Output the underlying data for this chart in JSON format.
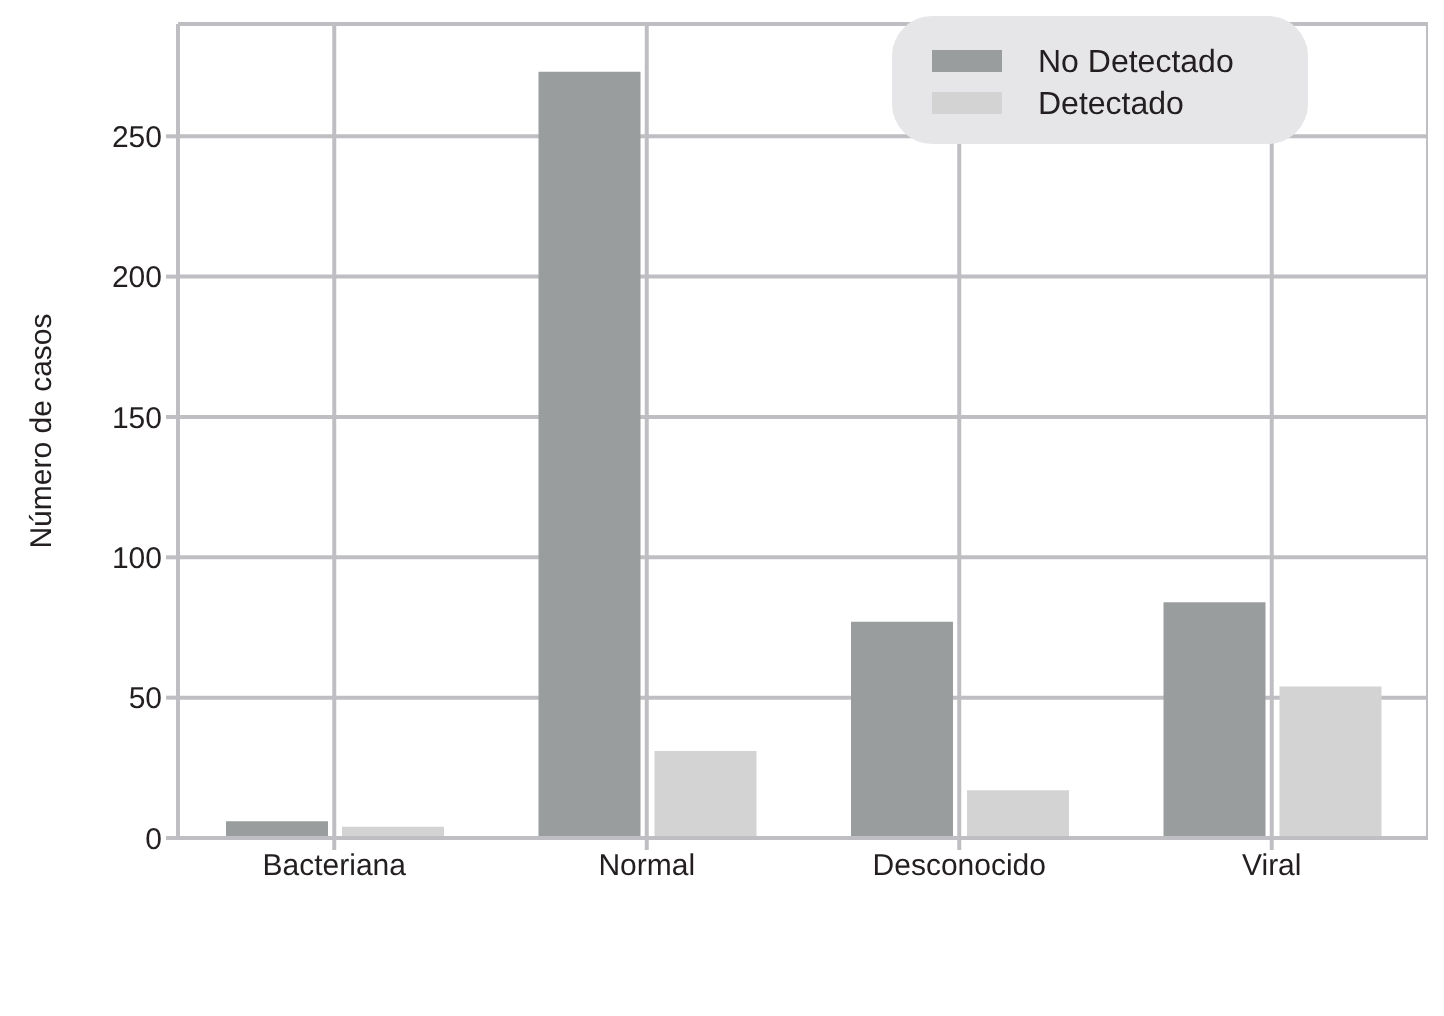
{
  "chart_data": {
    "type": "bar",
    "ylabel": "Número de casos",
    "categories": [
      "Bacteriana",
      "Normal",
      "Desconocido",
      "Viral"
    ],
    "series": [
      {
        "name": "No Detectado",
        "color": "#9a9d9e",
        "values": [
          6,
          273,
          77,
          84
        ]
      },
      {
        "name": "Detectado",
        "color": "#d3d3d3",
        "values": [
          4,
          31,
          17,
          54
        ]
      }
    ],
    "ylim": [
      0,
      290
    ],
    "yticks": [
      0,
      50,
      100,
      150,
      200,
      250
    ],
    "grid": true,
    "legend": "top right"
  }
}
